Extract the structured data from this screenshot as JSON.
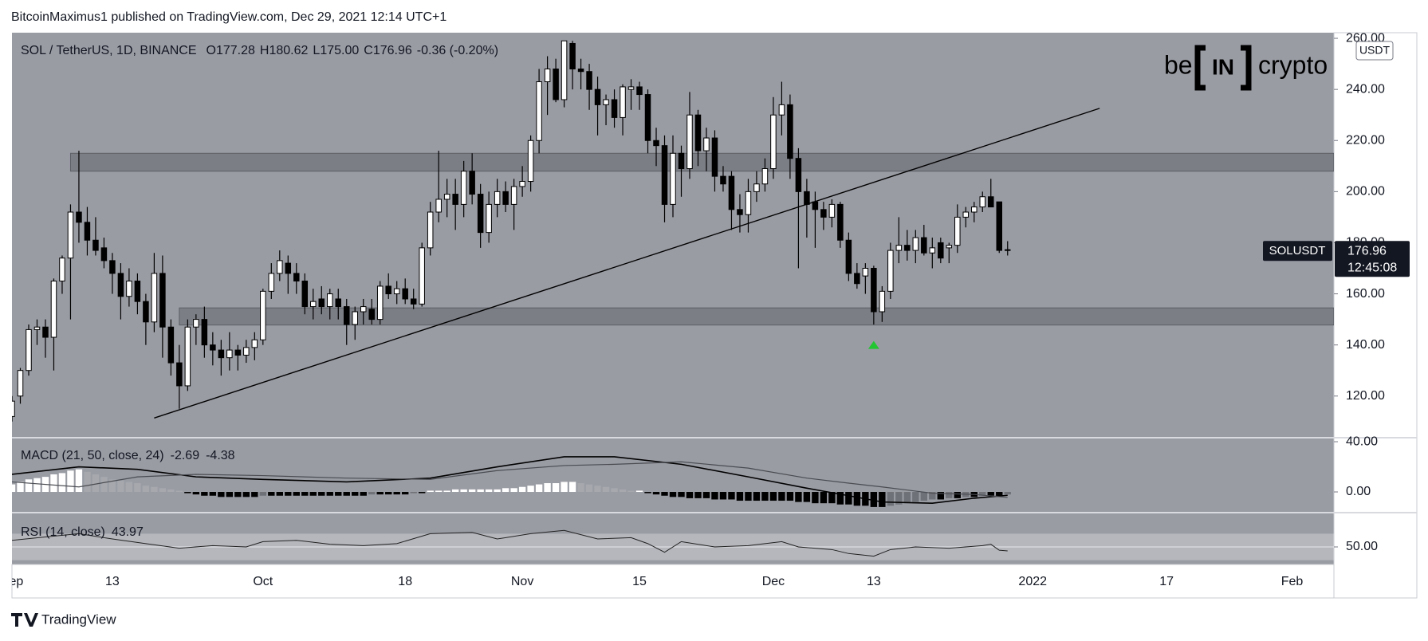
{
  "header": "BitcoinMaximus1 published on TradingView.com, Dec 29, 2021 12:14 UTC+1",
  "footer": "TradingView",
  "chart_data": [
    {
      "type": "candlestick",
      "legend": {
        "symbol": "SOL / TetherUS, 1D, BINANCE",
        "fields": [
          {
            "label": "O",
            "value": "177.28"
          },
          {
            "label": "H",
            "value": "180.62"
          },
          {
            "label": "L",
            "value": "175.00"
          },
          {
            "label": "C",
            "value": "176.96"
          }
        ],
        "change": "-0.36 (-0.20%)"
      },
      "symbol_tag": "SOLUSDT",
      "countdown": "12:45:08",
      "currency": "USDT",
      "logo": {
        "left": "be",
        "mid": "IN",
        "right": "crypto"
      },
      "up_color": "#ffffff",
      "down_color": "#000000",
      "x": [
        "2021-09-01",
        "2021-09-02",
        "2021-09-03",
        "2021-09-04",
        "2021-09-05",
        "2021-09-06",
        "2021-09-07",
        "2021-09-08",
        "2021-09-09",
        "2021-09-10",
        "2021-09-11",
        "2021-09-12",
        "2021-09-13",
        "2021-09-14",
        "2021-09-15",
        "2021-09-16",
        "2021-09-17",
        "2021-09-18",
        "2021-09-19",
        "2021-09-20",
        "2021-09-21",
        "2021-09-22",
        "2021-09-23",
        "2021-09-24",
        "2021-09-25",
        "2021-09-26",
        "2021-09-27",
        "2021-09-28",
        "2021-09-29",
        "2021-09-30",
        "2021-10-01",
        "2021-10-02",
        "2021-10-03",
        "2021-10-04",
        "2021-10-05",
        "2021-10-06",
        "2021-10-07",
        "2021-10-08",
        "2021-10-09",
        "2021-10-10",
        "2021-10-11",
        "2021-10-12",
        "2021-10-13",
        "2021-10-14",
        "2021-10-15",
        "2021-10-16",
        "2021-10-17",
        "2021-10-18",
        "2021-10-19",
        "2021-10-20",
        "2021-10-21",
        "2021-10-22",
        "2021-10-23",
        "2021-10-24",
        "2021-10-25",
        "2021-10-26",
        "2021-10-27",
        "2021-10-28",
        "2021-10-29",
        "2021-10-30",
        "2021-10-31",
        "2021-11-01",
        "2021-11-02",
        "2021-11-03",
        "2021-11-04",
        "2021-11-05",
        "2021-11-06",
        "2021-11-07",
        "2021-11-08",
        "2021-11-09",
        "2021-11-10",
        "2021-11-11",
        "2021-11-12",
        "2021-11-13",
        "2021-11-14",
        "2021-11-15",
        "2021-11-16",
        "2021-11-17",
        "2021-11-18",
        "2021-11-19",
        "2021-11-20",
        "2021-11-21",
        "2021-11-22",
        "2021-11-23",
        "2021-11-24",
        "2021-11-25",
        "2021-11-26",
        "2021-11-27",
        "2021-11-28",
        "2021-11-29",
        "2021-11-30",
        "2021-12-01",
        "2021-12-02",
        "2021-12-03",
        "2021-12-04",
        "2021-12-05",
        "2021-12-06",
        "2021-12-07",
        "2021-12-08",
        "2021-12-09",
        "2021-12-10",
        "2021-12-11",
        "2021-12-12",
        "2021-12-13",
        "2021-12-14",
        "2021-12-15",
        "2021-12-16",
        "2021-12-17",
        "2021-12-18",
        "2021-12-19",
        "2021-12-20",
        "2021-12-21",
        "2021-12-22",
        "2021-12-23",
        "2021-12-24",
        "2021-12-25",
        "2021-12-26",
        "2021-12-27",
        "2021-12-28",
        "2021-12-29"
      ],
      "open": [
        112,
        120,
        130,
        146,
        147,
        143,
        165,
        174,
        192,
        188,
        181,
        178,
        173,
        168,
        159,
        165,
        157,
        149,
        168,
        147,
        133,
        124,
        147,
        150,
        140,
        138,
        135,
        138,
        136,
        139,
        142,
        161,
        168,
        172,
        168,
        165,
        155,
        158,
        155,
        158,
        155,
        148,
        153,
        154,
        150,
        163,
        160,
        162,
        158,
        156,
        178,
        192,
        197,
        199,
        195,
        208,
        199,
        184,
        195,
        200,
        195,
        202,
        204,
        220,
        243,
        248,
        236,
        258,
        248,
        247,
        240,
        234,
        236,
        229,
        240,
        241,
        238,
        220,
        218,
        195,
        215,
        209,
        230,
        216,
        221,
        206,
        206,
        193,
        191,
        200,
        203,
        209,
        230,
        234,
        213,
        200,
        196,
        193,
        190,
        195,
        181,
        168,
        167,
        170,
        153,
        161,
        177,
        179,
        177,
        182,
        176,
        180,
        178,
        179,
        190,
        192,
        194,
        198,
        196,
        177.28
      ],
      "high": [
        120,
        131,
        148,
        150,
        150,
        166,
        175,
        195,
        216,
        194,
        190,
        182,
        176,
        172,
        170,
        168,
        160,
        176,
        175,
        150,
        140,
        150,
        152,
        155,
        145,
        142,
        145,
        140,
        142,
        145,
        162,
        172,
        177,
        175,
        172,
        168,
        162,
        163,
        162,
        162,
        158,
        155,
        158,
        158,
        165,
        168,
        165,
        166,
        162,
        180,
        196,
        216,
        205,
        205,
        212,
        215,
        203,
        200,
        205,
        204,
        205,
        210,
        222,
        248,
        253,
        252,
        259,
        259,
        252,
        250,
        245,
        238,
        240,
        242,
        244,
        243,
        240,
        225,
        222,
        222,
        218,
        239,
        232,
        225,
        224,
        210,
        208,
        199,
        205,
        208,
        213,
        237,
        243,
        238,
        217,
        205,
        200,
        196,
        197,
        196,
        184,
        172,
        172,
        171,
        163,
        180,
        190,
        185,
        185,
        187,
        182,
        182,
        180,
        195,
        194,
        196,
        200,
        205,
        196,
        180.62
      ],
      "low": [
        110,
        117,
        128,
        140,
        135,
        130,
        160,
        150,
        180,
        175,
        175,
        170,
        160,
        150,
        155,
        152,
        140,
        145,
        135,
        128,
        115,
        122,
        140,
        135,
        132,
        128,
        130,
        130,
        133,
        134,
        140,
        158,
        165,
        160,
        160,
        152,
        150,
        152,
        150,
        150,
        140,
        142,
        148,
        148,
        148,
        158,
        156,
        156,
        154,
        155,
        175,
        188,
        190,
        185,
        190,
        195,
        178,
        180,
        190,
        192,
        185,
        198,
        200,
        215,
        230,
        235,
        233,
        240,
        240,
        232,
        222,
        226,
        225,
        222,
        232,
        232,
        215,
        210,
        188,
        190,
        198,
        205,
        210,
        208,
        200,
        200,
        185,
        184,
        184,
        196,
        200,
        205,
        222,
        205,
        170,
        182,
        178,
        185,
        186,
        178,
        165,
        162,
        160,
        148,
        149,
        158,
        172,
        173,
        172,
        175,
        170,
        172,
        172,
        176,
        186,
        188,
        192,
        195,
        176,
        175
      ],
      "close": [
        118,
        130,
        146,
        147,
        143,
        165,
        174,
        192,
        188,
        181,
        177,
        173,
        168,
        159,
        165,
        157,
        149,
        168,
        147,
        133,
        124,
        147,
        150,
        140,
        138,
        135,
        138,
        136,
        139,
        142,
        161,
        168,
        173,
        168,
        165,
        155,
        157,
        155,
        160,
        155,
        148,
        153,
        155,
        150,
        163,
        160,
        162,
        158,
        156,
        178,
        192,
        197,
        199,
        195,
        208,
        199,
        184,
        195,
        200,
        195,
        202,
        204,
        220,
        243,
        248,
        236,
        259,
        248,
        247,
        240,
        234,
        236,
        229,
        241,
        241,
        238,
        220,
        218,
        195,
        215,
        209,
        230,
        216,
        221,
        206,
        203,
        193,
        191,
        200,
        203,
        209,
        230,
        234,
        213,
        200,
        195,
        193,
        190,
        195,
        181,
        168,
        164,
        170,
        153,
        161,
        177,
        179,
        177,
        182,
        176,
        178,
        174,
        179,
        190,
        192,
        194,
        198,
        194,
        177,
        176.96
      ],
      "xlim": [
        "2021-09-01",
        "2022-02-06"
      ],
      "xticks": [
        {
          "value": "2021-09-01",
          "label": "Sep"
        },
        {
          "value": "2021-09-13",
          "label": "13"
        },
        {
          "value": "2021-10-01",
          "label": "Oct"
        },
        {
          "value": "2021-10-18",
          "label": "18"
        },
        {
          "value": "2021-11-01",
          "label": "Nov"
        },
        {
          "value": "2021-11-15",
          "label": "15"
        },
        {
          "value": "2021-12-01",
          "label": "Dec"
        },
        {
          "value": "2021-12-13",
          "label": "13"
        },
        {
          "value": "2022-01-01",
          "label": "2022"
        },
        {
          "value": "2022-01-17",
          "label": "17"
        },
        {
          "value": "2022-02-01",
          "label": "Feb"
        }
      ],
      "ylim": [
        103.7,
        262.2
      ],
      "yticks": [
        {
          "value": 120,
          "label": "120.00"
        },
        {
          "value": 140,
          "label": "140.00"
        },
        {
          "value": 160,
          "label": "160.00"
        },
        {
          "value": 180,
          "label": "180.00"
        },
        {
          "value": 200,
          "label": "200.00"
        },
        {
          "value": 220,
          "label": "220.00"
        },
        {
          "value": 240,
          "label": "240.00"
        },
        {
          "value": 260,
          "label": "260.00"
        }
      ],
      "grid": false,
      "zones": [
        {
          "from": "2021-09-08",
          "low": 208,
          "high": 215
        },
        {
          "from": "2021-09-21",
          "low": 147.8,
          "high": 154.5
        }
      ],
      "trendline": {
        "x": [
          "2021-09-18",
          "2022-01-09"
        ],
        "values": [
          111.4,
          232.6
        ],
        "color": "#000000"
      },
      "marker": {
        "x": "2021-12-13",
        "value": 140,
        "color": "#22c532"
      }
    },
    {
      "type": "macd",
      "title": "MACD (21, 50, close, 24)",
      "histogram": {
        "colors": [
          "#ffffff",
          "#a6a8ae",
          "#000000",
          "#6f7178"
        ],
        "values": [
          6,
          8,
          10,
          11,
          12,
          14,
          15,
          17,
          18,
          16,
          14,
          12,
          10,
          9,
          8,
          7,
          5,
          4,
          3,
          2,
          1,
          -1,
          -2,
          -3,
          -3,
          -4,
          -4,
          -4,
          -4,
          -4,
          -3,
          -3,
          -3,
          -3,
          -3,
          -3,
          -3,
          -3,
          -3,
          -3,
          -3,
          -3,
          -3,
          -2,
          -2,
          -2,
          -2,
          -2,
          -1,
          -1,
          1,
          1,
          1,
          2,
          2,
          2,
          2,
          2,
          2,
          3,
          3,
          4,
          5,
          6,
          7,
          7,
          8,
          8,
          7,
          6,
          5,
          4,
          3,
          2,
          1,
          1,
          -1,
          -2,
          -3,
          -4,
          -4,
          -5,
          -5,
          -5,
          -6,
          -6,
          -6,
          -7,
          -7,
          -7,
          -7,
          -7,
          -7,
          -7,
          -8,
          -8,
          -9,
          -9,
          -9,
          -10,
          -10,
          -11,
          -11,
          -12,
          -12,
          -11,
          -10,
          -9,
          -8,
          -7,
          -6,
          -6,
          -5,
          -5,
          -4,
          -4,
          -3,
          -3,
          -3,
          -2
        ]
      },
      "series": [
        {
          "color": "#000000",
          "x": [
            "2021-09-01",
            "2021-09-09",
            "2021-09-16",
            "2021-09-23",
            "2021-10-01",
            "2021-10-11",
            "2021-10-21",
            "2021-10-29",
            "2021-11-06",
            "2021-11-12",
            "2021-11-20",
            "2021-11-28",
            "2021-12-05",
            "2021-12-10",
            "2021-12-14",
            "2021-12-20",
            "2021-12-25",
            "2021-12-29"
          ],
          "values": [
            14,
            20,
            18,
            12,
            10,
            8,
            11,
            20,
            28,
            28,
            22,
            12,
            3,
            -3,
            -8,
            -9,
            -5,
            -2.69
          ]
        },
        {
          "color": "#4a4c52",
          "x": [
            "2021-09-01",
            "2021-09-09",
            "2021-09-16",
            "2021-09-23",
            "2021-10-01",
            "2021-10-11",
            "2021-10-21",
            "2021-10-29",
            "2021-11-06",
            "2021-11-12",
            "2021-11-20",
            "2021-11-28",
            "2021-12-05",
            "2021-12-10",
            "2021-12-14",
            "2021-12-20",
            "2021-12-25",
            "2021-12-29"
          ],
          "values": [
            8,
            4,
            12,
            14,
            13,
            11,
            10,
            17,
            21,
            22,
            24,
            19,
            11,
            7,
            4,
            -1,
            -2,
            -4.38
          ]
        }
      ],
      "ylim": [
        -16.5,
        43.2
      ],
      "yticks": [
        {
          "value": 0,
          "label": "0.00"
        },
        {
          "value": 40,
          "label": "40.00"
        }
      ]
    },
    {
      "type": "line",
      "title": "RSI (14, close)",
      "color": "#222222",
      "x": [
        "2021-09-01",
        "2021-09-05",
        "2021-09-09",
        "2021-09-13",
        "2021-09-17",
        "2021-09-21",
        "2021-09-25",
        "2021-09-29",
        "2021-10-01",
        "2021-10-05",
        "2021-10-09",
        "2021-10-13",
        "2021-10-17",
        "2021-10-21",
        "2021-10-26",
        "2021-10-29",
        "2021-11-02",
        "2021-11-06",
        "2021-11-10",
        "2021-11-14",
        "2021-11-16",
        "2021-11-18",
        "2021-11-20",
        "2021-11-24",
        "2021-11-28",
        "2021-12-02",
        "2021-12-04",
        "2021-12-08",
        "2021-12-10",
        "2021-12-13",
        "2021-12-15",
        "2021-12-18",
        "2021-12-22",
        "2021-12-26",
        "2021-12-27",
        "2021-12-28",
        "2021-12-29"
      ],
      "values": [
        60,
        65,
        70,
        62,
        55,
        48,
        52,
        50,
        58,
        60,
        54,
        52,
        55,
        70,
        72,
        62,
        70,
        75,
        62,
        64,
        55,
        42,
        58,
        50,
        52,
        58,
        50,
        46,
        40,
        36,
        46,
        50,
        48,
        52,
        54,
        45,
        43.97
      ],
      "band": [
        30,
        70
      ],
      "ylim": [
        23.5,
        101.8
      ],
      "yticks": [
        {
          "value": 50,
          "label": "50.00"
        }
      ]
    }
  ]
}
